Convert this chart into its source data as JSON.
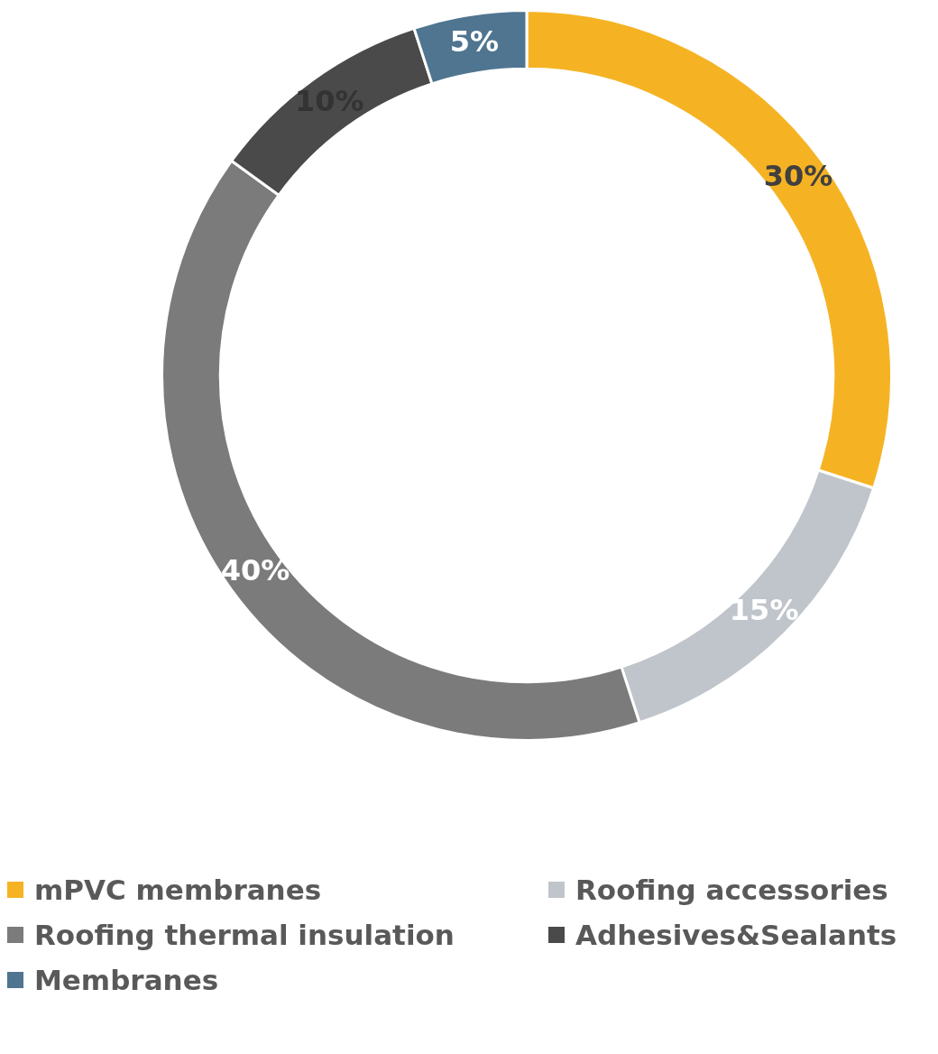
{
  "chart_data": {
    "type": "donut",
    "categories": [
      "mPVC membranes",
      "Roofing accessories",
      "Roofing thermal insulation",
      "Adhesives&Sealants",
      "Membranes"
    ],
    "values": [
      30,
      15,
      40,
      10,
      5
    ],
    "colors": [
      "#f5b324",
      "#c0c5cb",
      "#7b7b7b",
      "#4a4a4a",
      "#4f7590"
    ],
    "value_labels": [
      "30%",
      "15%",
      "40%",
      "10%",
      "5%"
    ],
    "legend": "bottom"
  }
}
